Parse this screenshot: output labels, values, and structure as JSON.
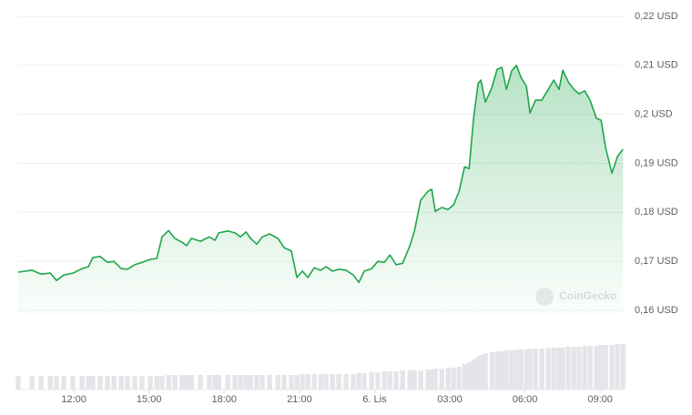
{
  "chart_data": {
    "type": "line",
    "watermark": "CoinGecko",
    "x": [
      9.78,
      10.33,
      10.69,
      11.06,
      11.31,
      11.6,
      11.96,
      12.33,
      12.58,
      12.76,
      13.05,
      13.34,
      13.6,
      13.89,
      14.14,
      14.43,
      14.72,
      15.05,
      15.31,
      15.52,
      15.78,
      16.03,
      16.32,
      16.5,
      16.69,
      17.05,
      17.41,
      17.63,
      17.78,
      18.14,
      18.43,
      18.65,
      18.87,
      19.05,
      19.3,
      19.52,
      19.81,
      20.14,
      20.39,
      20.68,
      20.9,
      21.12,
      21.34,
      21.59,
      21.85,
      22.06,
      22.32,
      22.57,
      22.86,
      23.15,
      23.37,
      23.59,
      23.88,
      24.13,
      24.39,
      24.61,
      24.86,
      25.12,
      25.41,
      25.59,
      25.84,
      26.13,
      26.28,
      26.42,
      26.68,
      26.93,
      27.15,
      27.37,
      27.59,
      27.77,
      27.95,
      28.13,
      28.24,
      28.42,
      28.68,
      28.89,
      29.08,
      29.26,
      29.47,
      29.66,
      29.84,
      30.06,
      30.2,
      30.42,
      30.67,
      30.93,
      31.15,
      31.36,
      31.51,
      31.73,
      31.95,
      32.16,
      32.38,
      32.6,
      32.85,
      33.04,
      33.22,
      33.47,
      33.69,
      33.91
    ],
    "series": [
      {
        "color": "#1fa64a",
        "values": [
          0.1678,
          0.1682,
          0.1674,
          0.1676,
          0.1661,
          0.1672,
          0.1676,
          0.1685,
          0.1689,
          0.1708,
          0.171,
          0.1698,
          0.17,
          0.1685,
          0.1684,
          0.1693,
          0.1698,
          0.1704,
          0.1706,
          0.175,
          0.1763,
          0.1747,
          0.1739,
          0.1732,
          0.1747,
          0.1741,
          0.175,
          0.1743,
          0.1758,
          0.1762,
          0.1758,
          0.175,
          0.176,
          0.1747,
          0.1735,
          0.175,
          0.1756,
          0.1747,
          0.1728,
          0.1721,
          0.1667,
          0.168,
          0.1667,
          0.1687,
          0.1682,
          0.1689,
          0.168,
          0.1684,
          0.1682,
          0.1672,
          0.1657,
          0.168,
          0.1685,
          0.17,
          0.1698,
          0.1713,
          0.1693,
          0.1696,
          0.1732,
          0.1762,
          0.1825,
          0.1843,
          0.1847,
          0.1802,
          0.181,
          0.1806,
          0.1815,
          0.1843,
          0.1893,
          0.1889,
          0.1992,
          0.2063,
          0.207,
          0.2025,
          0.2055,
          0.2092,
          0.2096,
          0.2051,
          0.2089,
          0.21,
          0.2076,
          0.2057,
          0.2003,
          0.2029,
          0.2029,
          0.2051,
          0.207,
          0.2051,
          0.209,
          0.2066,
          0.2051,
          0.2042,
          0.2048,
          0.2029,
          0.1992,
          0.1988,
          0.1931,
          0.188,
          0.1914,
          0.1929
        ]
      }
    ],
    "volume": [
      15,
      15,
      15,
      15,
      15,
      15,
      15,
      15,
      15,
      15,
      15,
      15,
      15,
      15,
      15,
      15,
      15,
      15,
      15,
      15,
      16,
      16,
      16,
      16,
      16,
      16,
      16,
      16,
      16,
      16,
      16,
      16,
      16,
      16,
      16,
      16,
      16,
      16,
      16,
      16,
      16,
      17,
      17,
      17,
      17,
      17,
      17,
      17,
      17,
      17,
      18,
      18,
      19,
      19,
      20,
      20,
      20,
      21,
      21,
      21,
      21,
      22,
      22,
      23,
      23,
      24,
      24,
      25,
      28,
      30,
      33,
      36,
      38,
      40,
      41,
      42,
      42,
      43,
      43,
      44,
      44,
      44,
      45,
      45,
      45,
      46,
      46,
      46,
      46,
      47,
      47,
      47,
      48,
      48,
      48,
      49,
      49,
      49,
      50,
      50
    ],
    "xlim": [
      9.78,
      33.94
    ],
    "xticks": [
      {
        "value": 12,
        "label": "12:00"
      },
      {
        "value": 15,
        "label": "15:00"
      },
      {
        "value": 18,
        "label": "18:00"
      },
      {
        "value": 21,
        "label": "21:00"
      },
      {
        "value": 24,
        "label": "6. Lis"
      },
      {
        "value": 27,
        "label": "03:00"
      },
      {
        "value": 30,
        "label": "06:00"
      },
      {
        "value": 33,
        "label": "09:00"
      }
    ],
    "ylim": [
      0.16,
      0.22
    ],
    "yticks": [
      {
        "value": 0.16,
        "label": "0,16 USD"
      },
      {
        "value": 0.17,
        "label": "0,17 USD"
      },
      {
        "value": 0.18,
        "label": "0,18 USD"
      },
      {
        "value": 0.19,
        "label": "0,19 USD"
      },
      {
        "value": 0.2,
        "label": "0,2 USD"
      },
      {
        "value": 0.21,
        "label": "0,21 USD"
      },
      {
        "value": 0.22,
        "label": "0,22 USD"
      }
    ],
    "grid": true
  }
}
